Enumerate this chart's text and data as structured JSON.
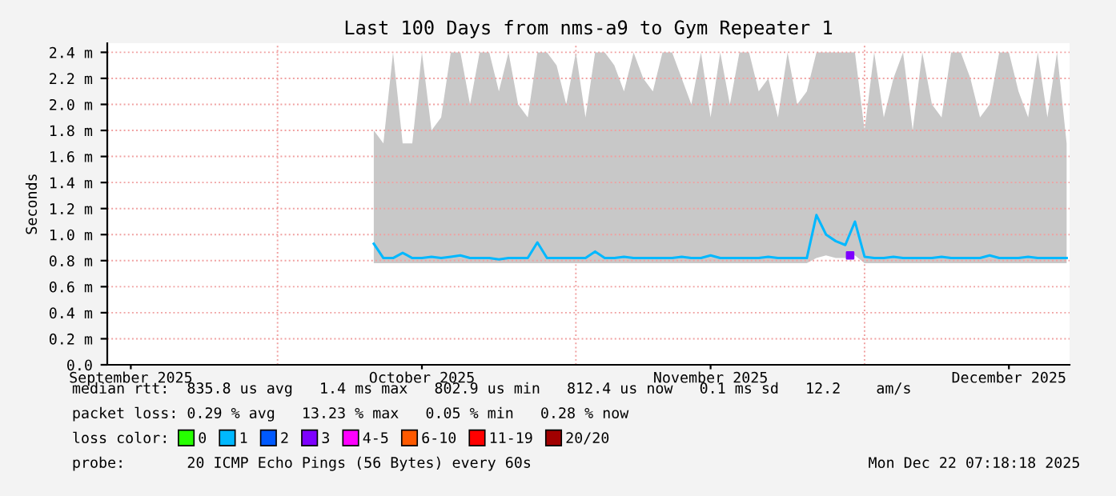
{
  "chart_data": {
    "type": "line",
    "title": "Last 100 Days from nms-a9 to Gym Repeater 1",
    "ylabel": "Seconds",
    "legend_title": "loss color:",
    "x": [
      "2025-10-11",
      "2025-10-12",
      "2025-10-13",
      "2025-10-14",
      "2025-10-15",
      "2025-10-16",
      "2025-10-17",
      "2025-10-18",
      "2025-10-19",
      "2025-10-20",
      "2025-10-21",
      "2025-10-22",
      "2025-10-23",
      "2025-10-24",
      "2025-10-25",
      "2025-10-26",
      "2025-10-27",
      "2025-10-28",
      "2025-10-29",
      "2025-10-30",
      "2025-10-31",
      "2025-11-01",
      "2025-11-02",
      "2025-11-03",
      "2025-11-04",
      "2025-11-05",
      "2025-11-06",
      "2025-11-07",
      "2025-11-08",
      "2025-11-09",
      "2025-11-10",
      "2025-11-11",
      "2025-11-12",
      "2025-11-13",
      "2025-11-14",
      "2025-11-15",
      "2025-11-16",
      "2025-11-17",
      "2025-11-18",
      "2025-11-19",
      "2025-11-20",
      "2025-11-21",
      "2025-11-22",
      "2025-11-23",
      "2025-11-24",
      "2025-11-25",
      "2025-11-26",
      "2025-11-27",
      "2025-11-28",
      "2025-11-29",
      "2025-11-30",
      "2025-12-01",
      "2025-12-02",
      "2025-12-03",
      "2025-12-04",
      "2025-12-05",
      "2025-12-06",
      "2025-12-07",
      "2025-12-08",
      "2025-12-09",
      "2025-12-10",
      "2025-12-11",
      "2025-12-12",
      "2025-12-13",
      "2025-12-14",
      "2025-12-15",
      "2025-12-16",
      "2025-12-17",
      "2025-12-18",
      "2025-12-19",
      "2025-12-20",
      "2025-12-21",
      "2025-12-22"
    ],
    "series": [
      {
        "name": "0",
        "color": "#26ff00",
        "values": [
          null,
          null,
          null,
          null,
          null,
          null,
          null,
          null,
          null,
          null,
          null,
          null,
          null,
          null,
          null,
          null,
          null,
          null,
          null,
          null,
          null,
          null,
          null,
          null,
          null,
          null,
          null,
          null,
          null,
          null,
          null,
          null,
          null,
          null,
          null,
          null,
          null,
          null,
          null,
          null,
          null,
          null,
          null,
          null,
          null,
          null,
          null,
          null,
          null,
          null,
          null,
          null,
          null,
          null,
          null,
          null,
          null,
          null,
          null,
          null,
          null,
          null,
          null,
          null,
          null,
          null,
          null,
          null,
          null,
          null,
          null,
          null,
          null
        ]
      },
      {
        "name": "1",
        "color": "#00b8ff",
        "values": [
          0.93,
          0.82,
          0.82,
          0.86,
          0.82,
          0.82,
          0.83,
          0.82,
          0.83,
          0.84,
          0.82,
          0.82,
          0.82,
          0.81,
          0.82,
          0.82,
          0.82,
          0.94,
          0.82,
          0.82,
          0.82,
          0.82,
          0.82,
          0.87,
          0.82,
          0.82,
          0.83,
          0.82,
          0.82,
          0.82,
          0.82,
          0.82,
          0.83,
          0.82,
          0.82,
          0.84,
          0.82,
          0.82,
          0.82,
          0.82,
          0.82,
          0.83,
          0.82,
          0.82,
          0.82,
          0.82,
          1.15,
          1.0,
          0.95,
          0.92,
          1.1,
          0.83,
          0.82,
          0.82,
          0.83,
          0.82,
          0.82,
          0.82,
          0.82,
          0.83,
          0.82,
          0.82,
          0.82,
          0.82,
          0.84,
          0.82,
          0.82,
          0.82,
          0.83,
          0.82,
          0.82,
          0.82,
          0.82
        ],
        "lower": [
          0.78,
          0.78,
          0.78,
          0.78,
          0.78,
          0.78,
          0.78,
          0.78,
          0.78,
          0.78,
          0.78,
          0.78,
          0.78,
          0.78,
          0.78,
          0.78,
          0.78,
          0.78,
          0.78,
          0.78,
          0.78,
          0.78,
          0.78,
          0.78,
          0.78,
          0.78,
          0.78,
          0.78,
          0.78,
          0.78,
          0.78,
          0.78,
          0.78,
          0.78,
          0.78,
          0.78,
          0.78,
          0.78,
          0.78,
          0.78,
          0.78,
          0.78,
          0.78,
          0.78,
          0.78,
          0.78,
          0.82,
          0.84,
          0.82,
          0.82,
          0.84,
          0.78,
          0.78,
          0.78,
          0.78,
          0.78,
          0.78,
          0.78,
          0.78,
          0.78,
          0.78,
          0.78,
          0.78,
          0.78,
          0.78,
          0.78,
          0.78,
          0.78,
          0.78,
          0.78,
          0.78,
          0.78,
          0.78
        ],
        "upper": [
          1.8,
          1.7,
          2.4,
          1.7,
          1.7,
          2.4,
          1.8,
          1.9,
          2.4,
          2.4,
          2.0,
          2.4,
          2.4,
          2.1,
          2.4,
          2.0,
          1.9,
          2.4,
          2.4,
          2.3,
          2.0,
          2.4,
          1.9,
          2.4,
          2.4,
          2.3,
          2.1,
          2.4,
          2.2,
          2.1,
          2.4,
          2.4,
          2.2,
          2.0,
          2.4,
          1.9,
          2.4,
          2.0,
          2.4,
          2.4,
          2.1,
          2.2,
          1.9,
          2.4,
          2.0,
          2.1,
          2.4,
          2.4,
          2.4,
          2.4,
          2.4,
          1.8,
          2.4,
          1.9,
          2.2,
          2.4,
          1.8,
          2.4,
          2.0,
          1.9,
          2.4,
          2.4,
          2.2,
          1.9,
          2.0,
          2.4,
          2.4,
          2.1,
          1.9,
          2.4,
          1.9,
          2.4,
          1.7
        ]
      },
      {
        "name": "2",
        "color": "#0059ff",
        "values": [
          null,
          null,
          null,
          null,
          null,
          null,
          null,
          null,
          null,
          null,
          null,
          null,
          null,
          null,
          null,
          null,
          null,
          null,
          null,
          null,
          null,
          null,
          null,
          null,
          null,
          null,
          null,
          null,
          null,
          null,
          null,
          null,
          null,
          null,
          null,
          null,
          null,
          null,
          null,
          null,
          null,
          null,
          null,
          null,
          null,
          null,
          null,
          null,
          null,
          null,
          null,
          null,
          null,
          null,
          null,
          null,
          null,
          null,
          null,
          null,
          null,
          null,
          null,
          null,
          null,
          null,
          null,
          null,
          null,
          null,
          null,
          null,
          null
        ]
      },
      {
        "name": "3",
        "color": "#7e00ff",
        "type": "scatter",
        "marker": "square",
        "x": [
          "2025-11-29T12:00"
        ],
        "values": [
          0.84
        ]
      },
      {
        "name": "4-5",
        "color": "#ff00ff",
        "values": [
          null,
          null,
          null,
          null,
          null,
          null,
          null,
          null,
          null,
          null,
          null,
          null,
          null,
          null,
          null,
          null,
          null,
          null,
          null,
          null,
          null,
          null,
          null,
          null,
          null,
          null,
          null,
          null,
          null,
          null,
          null,
          null,
          null,
          null,
          null,
          null,
          null,
          null,
          null,
          null,
          null,
          null,
          null,
          null,
          null,
          null,
          null,
          null,
          null,
          null,
          null,
          null,
          null,
          null,
          null,
          null,
          null,
          null,
          null,
          null,
          null,
          null,
          null,
          null,
          null,
          null,
          null,
          null,
          null,
          null,
          null,
          null,
          null
        ]
      },
      {
        "name": "6-10",
        "color": "#ff5900",
        "values": [
          null,
          null,
          null,
          null,
          null,
          null,
          null,
          null,
          null,
          null,
          null,
          null,
          null,
          null,
          null,
          null,
          null,
          null,
          null,
          null,
          null,
          null,
          null,
          null,
          null,
          null,
          null,
          null,
          null,
          null,
          null,
          null,
          null,
          null,
          null,
          null,
          null,
          null,
          null,
          null,
          null,
          null,
          null,
          null,
          null,
          null,
          null,
          null,
          null,
          null,
          null,
          null,
          null,
          null,
          null,
          null,
          null,
          null,
          null,
          null,
          null,
          null,
          null,
          null,
          null,
          null,
          null,
          null,
          null,
          null,
          null,
          null,
          null
        ]
      },
      {
        "name": "11-19",
        "color": "#ff0000",
        "values": [
          null,
          null,
          null,
          null,
          null,
          null,
          null,
          null,
          null,
          null,
          null,
          null,
          null,
          null,
          null,
          null,
          null,
          null,
          null,
          null,
          null,
          null,
          null,
          null,
          null,
          null,
          null,
          null,
          null,
          null,
          null,
          null,
          null,
          null,
          null,
          null,
          null,
          null,
          null,
          null,
          null,
          null,
          null,
          null,
          null,
          null,
          null,
          null,
          null,
          null,
          null,
          null,
          null,
          null,
          null,
          null,
          null,
          null,
          null,
          null,
          null,
          null,
          null,
          null,
          null,
          null,
          null,
          null,
          null,
          null,
          null,
          null,
          null
        ]
      },
      {
        "name": "20/20",
        "color": "#a10000",
        "values": [
          null,
          null,
          null,
          null,
          null,
          null,
          null,
          null,
          null,
          null,
          null,
          null,
          null,
          null,
          null,
          null,
          null,
          null,
          null,
          null,
          null,
          null,
          null,
          null,
          null,
          null,
          null,
          null,
          null,
          null,
          null,
          null,
          null,
          null,
          null,
          null,
          null,
          null,
          null,
          null,
          null,
          null,
          null,
          null,
          null,
          null,
          null,
          null,
          null,
          null,
          null,
          null,
          null,
          null,
          null,
          null,
          null,
          null,
          null,
          null,
          null,
          null,
          null,
          null,
          null,
          null,
          null,
          null,
          null,
          null,
          null,
          null,
          null
        ]
      }
    ],
    "xlim": [
      "2025-09-13T07:18",
      "2025-12-22T07:18"
    ],
    "xticks": [
      {
        "value": "2025-09-15T18:00",
        "label": "September 2025"
      },
      {
        "value": "2025-10-16",
        "label": "October 2025"
      },
      {
        "value": "2025-11-15",
        "label": "November 2025"
      },
      {
        "value": "2025-12-16",
        "label": "December 2025"
      }
    ],
    "ylim": [
      0,
      2.47
    ],
    "yticks": [
      {
        "value": 0,
        "label": "0.0"
      },
      {
        "value": 0.2,
        "label": "0.2 m"
      },
      {
        "value": 0.4,
        "label": "0.4 m"
      },
      {
        "value": 0.6,
        "label": "0.6 m"
      },
      {
        "value": 0.8,
        "label": "0.8 m"
      },
      {
        "value": 1.0,
        "label": "1.0 m"
      },
      {
        "value": 1.2,
        "label": "1.2 m"
      },
      {
        "value": 1.4,
        "label": "1.4 m"
      },
      {
        "value": 1.6,
        "label": "1.6 m"
      },
      {
        "value": 1.8,
        "label": "1.8 m"
      },
      {
        "value": 2.0,
        "label": "2.0 m"
      },
      {
        "value": 2.2,
        "label": "2.2 m"
      },
      {
        "value": 2.4,
        "label": "2.4 m"
      }
    ],
    "grid": true,
    "legend": "bottom",
    "marker": "none",
    "line_style": "solid",
    "annotations": [
      "median rtt:  835.8 us avg   1.4 ms max   802.9 us min   812.4 us now   0.1 ms sd   12.2    am/s",
      "packet loss: 0.29 % avg   13.23 % max   0.05 % min   0.28 % now",
      "probe:       20 ICMP Echo Pings (56 Bytes) every 60s",
      "Mon Dec 22 07:18:18 2025"
    ]
  }
}
